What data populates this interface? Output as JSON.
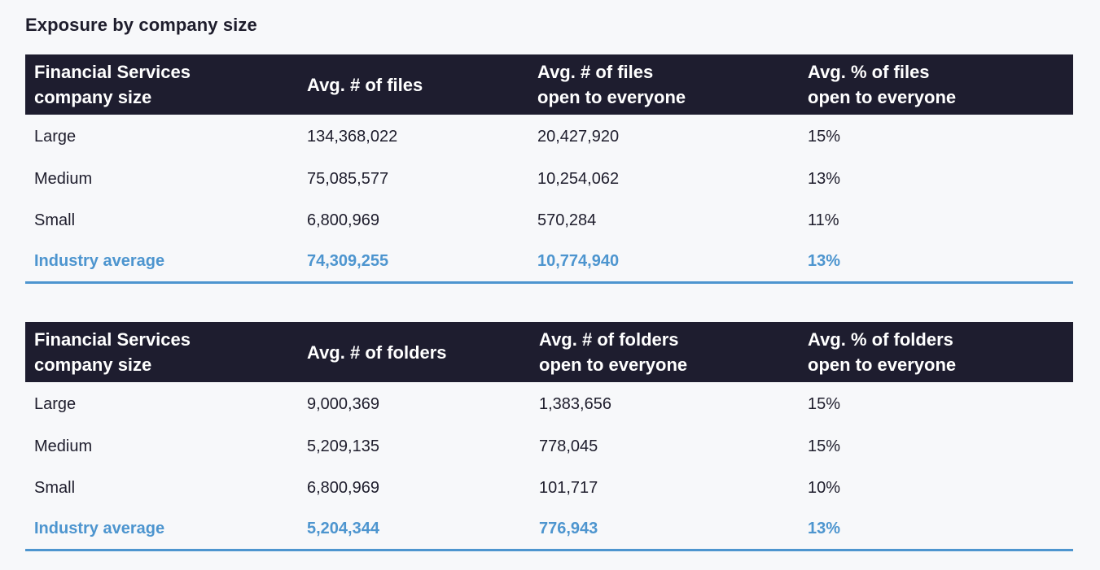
{
  "title": "Exposure by company size",
  "tables": [
    {
      "headers": [
        "Financial Services\ncompany size",
        "Avg. # of files",
        "Avg. # of files\nopen to everyone",
        "Avg. % of files\nopen to everyone"
      ],
      "rows": [
        [
          "Large",
          "134,368,022",
          "20,427,920",
          "15%"
        ],
        [
          "Medium",
          "75,085,577",
          "10,254,062",
          "13%"
        ],
        [
          "Small",
          "6,800,969",
          "570,284",
          "11%"
        ]
      ],
      "average": [
        "Industry average",
        "74,309,255",
        "10,774,940",
        "13%"
      ]
    },
    {
      "headers": [
        "Financial Services\ncompany size",
        "Avg. # of folders",
        "Avg. # of folders\nopen to everyone",
        "Avg. % of folders\nopen to everyone"
      ],
      "rows": [
        [
          "Large",
          "9,000,369",
          "1,383,656",
          "15%"
        ],
        [
          "Medium",
          "5,209,135",
          "778,045",
          "15%"
        ],
        [
          "Small",
          "6,800,969",
          "101,717",
          "10%"
        ]
      ],
      "average": [
        "Industry average",
        "5,204,344",
        "776,943",
        "13%"
      ]
    }
  ],
  "colors": {
    "header_bg": "#1e1d2f",
    "accent": "#4d95cf",
    "text": "#1e1d2c",
    "background": "#f7f8fa"
  }
}
